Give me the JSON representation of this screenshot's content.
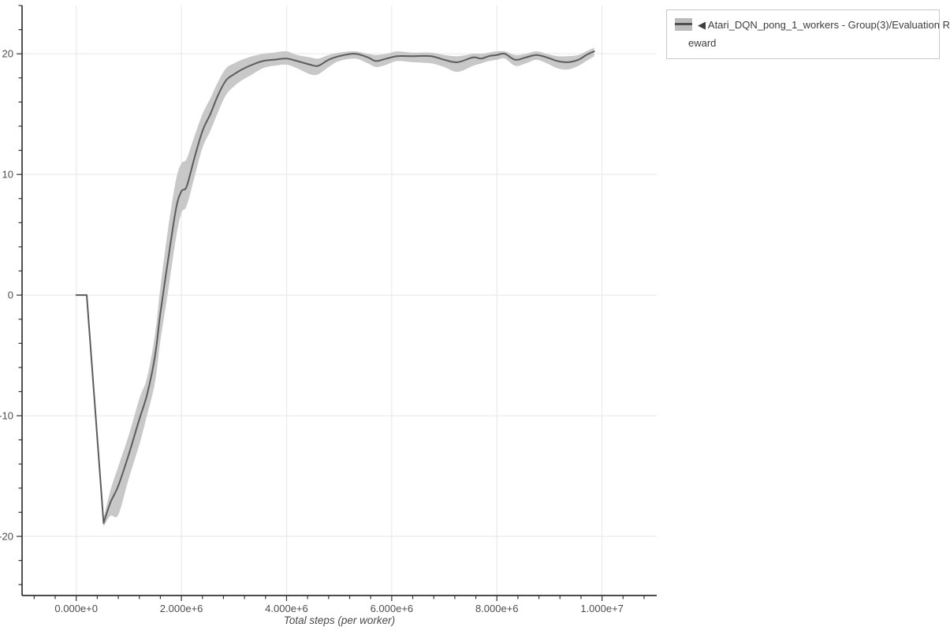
{
  "legend": {
    "label": "◀ Atari_DQN_pong_1_workers - Group(3)/Evaluation Reward",
    "label_line1": "◀ Atari_DQN_pong_1_workers - Group(3)/Evaluation R",
    "label_line2": "eward"
  },
  "chart_data": {
    "type": "line",
    "title": "",
    "xlabel": "Total steps (per worker)",
    "ylabel": "",
    "x_unit": "steps",
    "xlim_e6": [
      -1.03,
      11.04
    ],
    "ylim": [
      -24.9,
      24.0
    ],
    "grid": "major-only",
    "legend_position": "top-right-outside",
    "x_major_ticks_e6": [
      0,
      2,
      4,
      6,
      8,
      10
    ],
    "x_major_labels": [
      "0.000e+0",
      "2.000e+6",
      "4.000e+6",
      "6.000e+6",
      "8.000e+6",
      "1.000e+7"
    ],
    "x_minor_step_e6": 0.4,
    "y_major_ticks": [
      -20,
      -10,
      0,
      10,
      20
    ],
    "y_major_labels": [
      "-20",
      "-10",
      "0",
      "10",
      "20"
    ],
    "y_minor_step": 2,
    "colors": {
      "line": "#5c5c5c",
      "band": "#c8c8c8",
      "grid": "#e6e6e6",
      "axis": "#333333",
      "tick_label": "#4d4d4d"
    },
    "series": [
      {
        "name": "◀ Atari_DQN_pong_1_workers - Group(3)/Evaluation Reward",
        "x_e6": [
          0.0,
          0.2,
          0.52,
          0.65,
          0.8,
          1.0,
          1.2,
          1.35,
          1.5,
          1.6,
          1.75,
          1.9,
          2.0,
          2.1,
          2.25,
          2.4,
          2.55,
          2.7,
          2.85,
          3.0,
          3.15,
          3.35,
          3.55,
          3.75,
          4.0,
          4.2,
          4.45,
          4.6,
          4.8,
          5.0,
          5.3,
          5.55,
          5.7,
          5.9,
          6.1,
          6.4,
          6.75,
          7.0,
          7.25,
          7.55,
          7.7,
          7.85,
          8.0,
          8.15,
          8.35,
          8.55,
          8.75,
          8.95,
          9.15,
          9.35,
          9.55,
          9.7,
          9.85
        ],
        "mean": [
          0,
          0,
          -18.9,
          -17.2,
          -15.8,
          -13.2,
          -10.3,
          -8.2,
          -5.0,
          -1.5,
          3.0,
          7.2,
          8.6,
          9.0,
          11.4,
          13.6,
          15.0,
          16.6,
          17.8,
          18.3,
          18.7,
          19.1,
          19.4,
          19.5,
          19.6,
          19.4,
          19.1,
          19.0,
          19.5,
          19.8,
          20.0,
          19.7,
          19.4,
          19.6,
          19.8,
          19.8,
          19.8,
          19.5,
          19.3,
          19.7,
          19.6,
          19.8,
          19.9,
          20.0,
          19.5,
          19.7,
          19.9,
          19.7,
          19.4,
          19.3,
          19.5,
          19.9,
          20.2
        ],
        "band_low": [
          0,
          0,
          -19.2,
          -18.3,
          -18.2,
          -15.2,
          -12.4,
          -9.9,
          -7.2,
          -3.8,
          0.4,
          4.8,
          6.8,
          7.4,
          9.8,
          12.2,
          13.6,
          15.2,
          16.6,
          17.3,
          17.8,
          18.3,
          18.8,
          19.0,
          19.1,
          18.8,
          18.3,
          18.3,
          18.9,
          19.4,
          19.6,
          19.2,
          18.9,
          19.1,
          19.4,
          19.3,
          19.2,
          18.9,
          18.5,
          19.0,
          19.2,
          19.4,
          19.5,
          19.6,
          19.0,
          19.2,
          19.5,
          19.2,
          18.8,
          18.7,
          19.0,
          19.4,
          19.8
        ],
        "band_high": [
          0,
          0,
          -18.5,
          -16.2,
          -14.2,
          -11.6,
          -8.6,
          -6.8,
          -3.2,
          0.6,
          5.6,
          9.6,
          10.9,
          11.3,
          13.2,
          15.0,
          16.3,
          17.7,
          18.8,
          19.2,
          19.5,
          19.8,
          20.0,
          20.1,
          20.2,
          19.9,
          19.7,
          19.6,
          19.9,
          20.1,
          20.2,
          20.0,
          19.9,
          20.0,
          20.2,
          20.1,
          20.1,
          19.9,
          19.8,
          20.0,
          20.0,
          20.1,
          20.2,
          20.2,
          19.9,
          20.0,
          20.2,
          20.0,
          19.8,
          19.8,
          19.9,
          20.2,
          20.5
        ]
      }
    ]
  }
}
